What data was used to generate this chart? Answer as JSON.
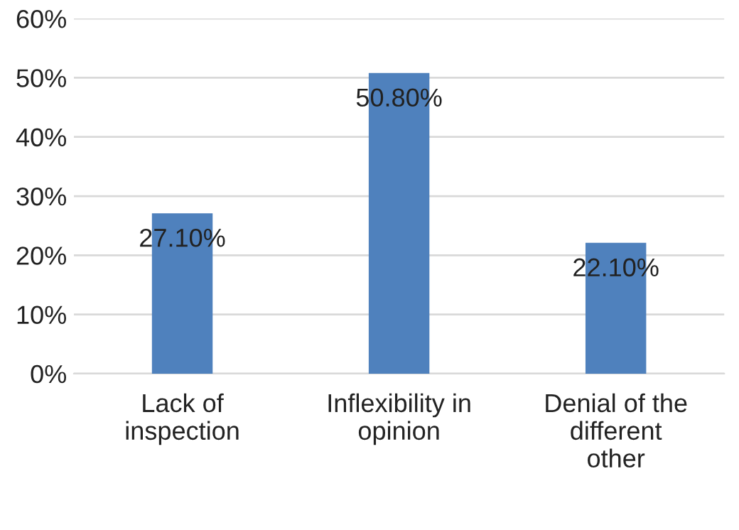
{
  "chart_data": {
    "type": "bar",
    "categories": [
      "Lack of\ninspection",
      "Inflexibility in\nopinion",
      "Denial of the\ndifferent\nother"
    ],
    "values": [
      27.1,
      50.8,
      22.1
    ],
    "value_labels": [
      "27.10%",
      "50.80%",
      "22.10%"
    ],
    "color": "#4f81bd",
    "ylim": [
      0,
      60
    ],
    "yticks": [
      {
        "value": 0,
        "label": "0%"
      },
      {
        "value": 10,
        "label": "10%"
      },
      {
        "value": 20,
        "label": "20%"
      },
      {
        "value": 30,
        "label": "30%"
      },
      {
        "value": 40,
        "label": "40%"
      },
      {
        "value": 50,
        "label": "50%"
      },
      {
        "value": 60,
        "label": "60%"
      }
    ],
    "grid": "y",
    "legend": false
  }
}
